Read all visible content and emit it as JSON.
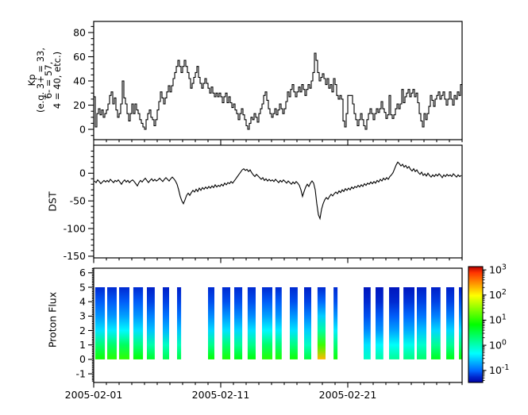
{
  "figure": {
    "background": "#ffffff",
    "axes_color": "#000000",
    "x_axis": {
      "tick_labels": [
        "2005-02-01",
        "2005-02-11",
        "2005-02-21"
      ],
      "tick_day_positions": [
        0,
        10,
        20
      ],
      "minor_tick_interval_days": 1,
      "span_days": 29
    },
    "colorbar": {
      "scale": "log",
      "colormap": "rainbow",
      "tick_label_base": "10",
      "tick_exponents": [
        3,
        2,
        1,
        0,
        -1
      ],
      "range_log10": [
        -1.48,
        3.13
      ]
    }
  },
  "chart_data": [
    {
      "type": "line",
      "subtype": "step",
      "panel": "top",
      "ylabel": "Kp (e.g. 3+ = 33, 6- = 57, 4 = 40, etc.)",
      "ylabel_lines": [
        "Kp",
        "(e.g. 3+ = 33,",
        "6- = 57,",
        "4 = 40, etc.)"
      ],
      "yticks": [
        0,
        20,
        40,
        60,
        80
      ],
      "y_minor_step": 5,
      "ylim": [
        -8.5,
        89.2
      ],
      "x_unit": "days since 2005-02-01",
      "x_step_days": 0.125,
      "values": [
        27,
        2,
        13,
        17,
        12,
        16,
        10,
        13,
        16,
        21,
        28,
        31,
        21,
        26,
        16,
        10,
        13,
        21,
        40,
        26,
        21,
        13,
        7,
        13,
        21,
        13,
        21,
        16,
        13,
        8,
        5,
        2,
        0,
        8,
        13,
        16,
        10,
        8,
        3,
        8,
        16,
        23,
        31,
        26,
        21,
        26,
        31,
        36,
        31,
        36,
        42,
        47,
        52,
        57,
        52,
        47,
        52,
        57,
        52,
        47,
        42,
        34,
        38,
        43,
        47,
        52,
        43,
        38,
        34,
        38,
        42,
        38,
        34,
        30,
        35,
        30,
        27,
        30,
        27,
        30,
        27,
        22,
        27,
        30,
        22,
        27,
        22,
        18,
        21,
        16,
        13,
        8,
        13,
        17,
        12,
        8,
        3,
        0,
        5,
        10,
        8,
        13,
        10,
        6,
        13,
        17,
        21,
        28,
        31,
        24,
        17,
        13,
        10,
        13,
        17,
        12,
        16,
        21,
        17,
        13,
        17,
        23,
        31,
        27,
        33,
        37,
        31,
        27,
        31,
        35,
        31,
        37,
        33,
        28,
        33,
        37,
        34,
        40,
        47,
        63,
        57,
        47,
        40,
        43,
        46,
        42,
        37,
        42,
        34,
        37,
        31,
        42,
        37,
        28,
        25,
        28,
        25,
        7,
        2,
        13,
        28,
        28,
        28,
        21,
        13,
        8,
        3,
        8,
        13,
        8,
        3,
        0,
        8,
        13,
        17,
        13,
        8,
        13,
        17,
        14,
        17,
        23,
        17,
        14,
        9,
        12,
        28,
        12,
        9,
        12,
        17,
        21,
        17,
        21,
        33,
        22,
        27,
        30,
        33,
        27,
        30,
        33,
        27,
        30,
        22,
        13,
        7,
        2,
        13,
        8,
        13,
        19,
        28,
        24,
        19,
        25,
        28,
        31,
        25,
        28,
        31,
        25,
        20,
        25,
        31,
        25,
        20,
        28,
        25,
        31,
        28,
        37
      ]
    },
    {
      "type": "line",
      "panel": "middle",
      "ylabel": "DST",
      "yticks": [
        0,
        -50,
        -100,
        -150
      ],
      "y_minor_step": 10,
      "ylim": [
        -153,
        50.6
      ],
      "x_unit": "days since 2005-02-01",
      "x_step_days": 0.125,
      "values": [
        -14,
        -17,
        -12,
        -15,
        -19,
        -16,
        -13,
        -16,
        -13,
        -16,
        -11,
        -14,
        -17,
        -13,
        -15,
        -12,
        -16,
        -20,
        -15,
        -12,
        -16,
        -13,
        -17,
        -14,
        -12,
        -15,
        -19,
        -23,
        -17,
        -13,
        -16,
        -12,
        -9,
        -13,
        -17,
        -13,
        -10,
        -14,
        -11,
        -14,
        -12,
        -9,
        -12,
        -15,
        -11,
        -8,
        -11,
        -14,
        -10,
        -7,
        -10,
        -14,
        -20,
        -30,
        -42,
        -50,
        -55,
        -48,
        -40,
        -36,
        -40,
        -35,
        -31,
        -34,
        -29,
        -33,
        -27,
        -31,
        -26,
        -29,
        -25,
        -28,
        -24,
        -27,
        -23,
        -26,
        -21,
        -25,
        -22,
        -24,
        -20,
        -23,
        -18,
        -21,
        -17,
        -19,
        -15,
        -18,
        -14,
        -10,
        -6,
        -2,
        2,
        6,
        8,
        5,
        7,
        3,
        6,
        1,
        -3,
        -6,
        -2,
        -5,
        -8,
        -11,
        -8,
        -13,
        -10,
        -14,
        -11,
        -14,
        -12,
        -15,
        -11,
        -14,
        -17,
        -13,
        -16,
        -12,
        -15,
        -18,
        -14,
        -17,
        -20,
        -16,
        -19,
        -15,
        -18,
        -22,
        -30,
        -42,
        -33,
        -25,
        -20,
        -24,
        -18,
        -14,
        -18,
        -30,
        -55,
        -75,
        -82,
        -65,
        -55,
        -48,
        -44,
        -47,
        -42,
        -38,
        -41,
        -37,
        -34,
        -37,
        -32,
        -35,
        -30,
        -33,
        -28,
        -31,
        -27,
        -30,
        -25,
        -28,
        -24,
        -26,
        -22,
        -25,
        -21,
        -24,
        -19,
        -22,
        -18,
        -20,
        -16,
        -19,
        -15,
        -18,
        -13,
        -16,
        -11,
        -14,
        -9,
        -12,
        -8,
        -11,
        -6,
        -3,
        1,
        8,
        15,
        20,
        17,
        13,
        16,
        11,
        14,
        9,
        12,
        7,
        4,
        8,
        3,
        6,
        1,
        -2,
        2,
        -4,
        -1,
        -5,
        0,
        -4,
        -7,
        -3,
        -6,
        -2,
        -5,
        -1,
        -4,
        -8,
        -3,
        -6,
        -2,
        -5,
        -3,
        -6,
        -1,
        -4,
        -7,
        -3,
        -6,
        -4
      ]
    },
    {
      "type": "heatmap",
      "panel": "bottom",
      "ylabel": "Proton Flux",
      "yticks": [
        -1,
        0,
        1,
        2,
        3,
        4,
        5,
        6
      ],
      "y_minor_step": 0.1,
      "ylim": [
        -1.6,
        6.32
      ],
      "column_y_extent": [
        0,
        5
      ],
      "value_scale": "log10 flux",
      "profile_y_levels": [
        5,
        4,
        3,
        2,
        1,
        0
      ],
      "columns": [
        {
          "day_start": 0.12,
          "day_end": 0.88,
          "log10_flux": [
            -1.25,
            -1.05,
            -0.8,
            -0.45,
            0.3,
            0.9
          ]
        },
        {
          "day_start": 1.06,
          "day_end": 1.81,
          "log10_flux": [
            -1.25,
            -1.05,
            -0.8,
            -0.4,
            0.35,
            1.0
          ]
        },
        {
          "day_start": 2.0,
          "day_end": 2.81,
          "log10_flux": [
            -1.25,
            -1.05,
            -0.75,
            -0.35,
            0.4,
            1.05
          ]
        },
        {
          "day_start": 3.12,
          "day_end": 3.88,
          "log10_flux": [
            -1.25,
            -1.05,
            -0.8,
            -0.45,
            0.25,
            0.85
          ]
        },
        {
          "day_start": 4.19,
          "day_end": 4.81,
          "log10_flux": [
            -1.3,
            -1.15,
            -0.9,
            -0.6,
            0.05,
            0.65
          ]
        },
        {
          "day_start": 5.44,
          "day_end": 5.94,
          "log10_flux": [
            -1.3,
            -1.15,
            -0.95,
            -0.65,
            -0.05,
            0.5
          ]
        },
        {
          "day_start": 6.56,
          "day_end": 6.88,
          "log10_flux": [
            -1.3,
            -1.15,
            -0.95,
            -0.6,
            0.0,
            0.55
          ]
        },
        {
          "day_start": 9.0,
          "day_end": 9.5,
          "log10_flux": [
            -1.25,
            -1.1,
            -0.85,
            -0.5,
            0.2,
            0.85
          ]
        },
        {
          "day_start": 10.12,
          "day_end": 10.75,
          "log10_flux": [
            -1.25,
            -1.1,
            -0.8,
            -0.45,
            0.3,
            0.95
          ]
        },
        {
          "day_start": 11.06,
          "day_end": 11.69,
          "log10_flux": [
            -1.25,
            -1.1,
            -0.85,
            -0.5,
            0.15,
            0.75
          ]
        },
        {
          "day_start": 12.12,
          "day_end": 12.75,
          "log10_flux": [
            -1.25,
            -1.1,
            -0.85,
            -0.45,
            0.2,
            0.8
          ]
        },
        {
          "day_start": 13.25,
          "day_end": 14.06,
          "log10_flux": [
            -1.25,
            -1.05,
            -0.75,
            -0.35,
            0.35,
            1.0
          ]
        },
        {
          "day_start": 14.3,
          "day_end": 14.8,
          "log10_flux": [
            -1.25,
            -1.05,
            -0.8,
            -0.4,
            0.3,
            0.95
          ]
        },
        {
          "day_start": 15.44,
          "day_end": 16.06,
          "log10_flux": [
            -1.25,
            -1.1,
            -0.8,
            -0.45,
            0.25,
            0.9
          ]
        },
        {
          "day_start": 16.56,
          "day_end": 17.12,
          "log10_flux": [
            -1.3,
            -1.15,
            -0.9,
            -0.55,
            -0.05,
            0.55
          ]
        },
        {
          "day_start": 17.62,
          "day_end": 18.25,
          "log10_flux": [
            -1.25,
            -1.0,
            -0.55,
            0.1,
            1.1,
            2.3
          ]
        },
        {
          "day_start": 18.88,
          "day_end": 19.19,
          "log10_flux": [
            -1.25,
            -1.1,
            -0.8,
            -0.4,
            0.3,
            0.9
          ]
        },
        {
          "day_start": 21.25,
          "day_end": 21.8,
          "log10_flux": [
            -1.35,
            -1.25,
            -1.1,
            -0.85,
            -0.45,
            -0.05
          ]
        },
        {
          "day_start": 22.19,
          "day_end": 22.8,
          "log10_flux": [
            -1.35,
            -1.25,
            -1.05,
            -0.8,
            -0.35,
            0.1
          ]
        },
        {
          "day_start": 23.25,
          "day_end": 24.06,
          "log10_flux": [
            -1.35,
            -1.25,
            -1.05,
            -0.75,
            -0.3,
            0.15
          ]
        },
        {
          "day_start": 24.38,
          "day_end": 25.25,
          "log10_flux": [
            -1.35,
            -1.2,
            -1.0,
            -0.7,
            -0.25,
            0.25
          ]
        },
        {
          "day_start": 25.44,
          "day_end": 26.19,
          "log10_flux": [
            -1.3,
            -1.15,
            -0.95,
            -0.6,
            -0.1,
            0.35
          ]
        },
        {
          "day_start": 26.56,
          "day_end": 27.3,
          "log10_flux": [
            -1.3,
            -1.15,
            -0.9,
            -0.5,
            0.15,
            0.7
          ]
        },
        {
          "day_start": 27.75,
          "day_end": 28.38,
          "log10_flux": [
            -1.3,
            -1.15,
            -0.9,
            -0.5,
            0.15,
            0.75
          ]
        },
        {
          "day_start": 28.75,
          "day_end": 29.0,
          "log10_flux": [
            -1.3,
            -1.1,
            -0.85,
            -0.45,
            0.25,
            0.85
          ]
        }
      ]
    }
  ]
}
